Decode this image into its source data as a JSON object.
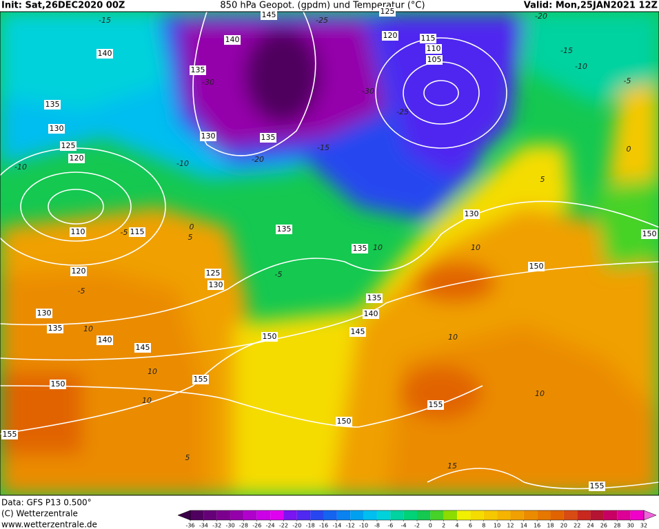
{
  "header": {
    "init": "Init: Sat,26DEC2020 00Z",
    "title": "850 hPa Geopot. (gpdm) und Temperatur (°C)",
    "valid": "Valid: Mon,25JAN2021 12Z"
  },
  "footer": {
    "data": "Data: GFS P13 0.500°",
    "copyright": "(C) Wetterzentrale",
    "url": "www.wetterzentrale.de"
  },
  "geopotential_labels": [
    145,
    140,
    140,
    135,
    135,
    130,
    125,
    120,
    130,
    135,
    125,
    120,
    115,
    110,
    105,
    110,
    115,
    120,
    125,
    130,
    135,
    135,
    130,
    150,
    150,
    135,
    140,
    145,
    130,
    135,
    140,
    145,
    150,
    155,
    150,
    155,
    150,
    155,
    155
  ],
  "temperature_labels": [
    -15,
    -25,
    -20,
    -15,
    -10,
    -5,
    0,
    -30,
    -30,
    -25,
    -20,
    -15,
    -10,
    -10,
    -5,
    0,
    5,
    -5,
    10,
    10,
    10,
    5,
    5,
    10,
    10,
    10,
    15,
    -5,
    10
  ],
  "colorbar": {
    "ticks": [
      -36,
      -34,
      -32,
      -30,
      -28,
      -26,
      -24,
      -22,
      -20,
      -18,
      -16,
      -14,
      -12,
      -10,
      -8,
      -6,
      -4,
      -2,
      0,
      2,
      4,
      6,
      8,
      10,
      12,
      14,
      16,
      18,
      20,
      22,
      24,
      26,
      28,
      30,
      32
    ],
    "colors": [
      "#3a0048",
      "#50005f",
      "#660078",
      "#7c008e",
      "#9400aa",
      "#b000cc",
      "#cc00e6",
      "#e000f0",
      "#7a14f0",
      "#5028f0",
      "#2846f0",
      "#1464f0",
      "#0a82f0",
      "#00a0f0",
      "#00bef0",
      "#00d2dc",
      "#00d2a0",
      "#00d278",
      "#14c850",
      "#46d228",
      "#8cdc00",
      "#f0f000",
      "#f5dc00",
      "#f5c800",
      "#f5b400",
      "#f0a000",
      "#eb8c00",
      "#e67800",
      "#e16400",
      "#d84c14",
      "#c8281e",
      "#b41432",
      "#c80064",
      "#dc0096",
      "#f000c8",
      "#f064dc"
    ]
  }
}
